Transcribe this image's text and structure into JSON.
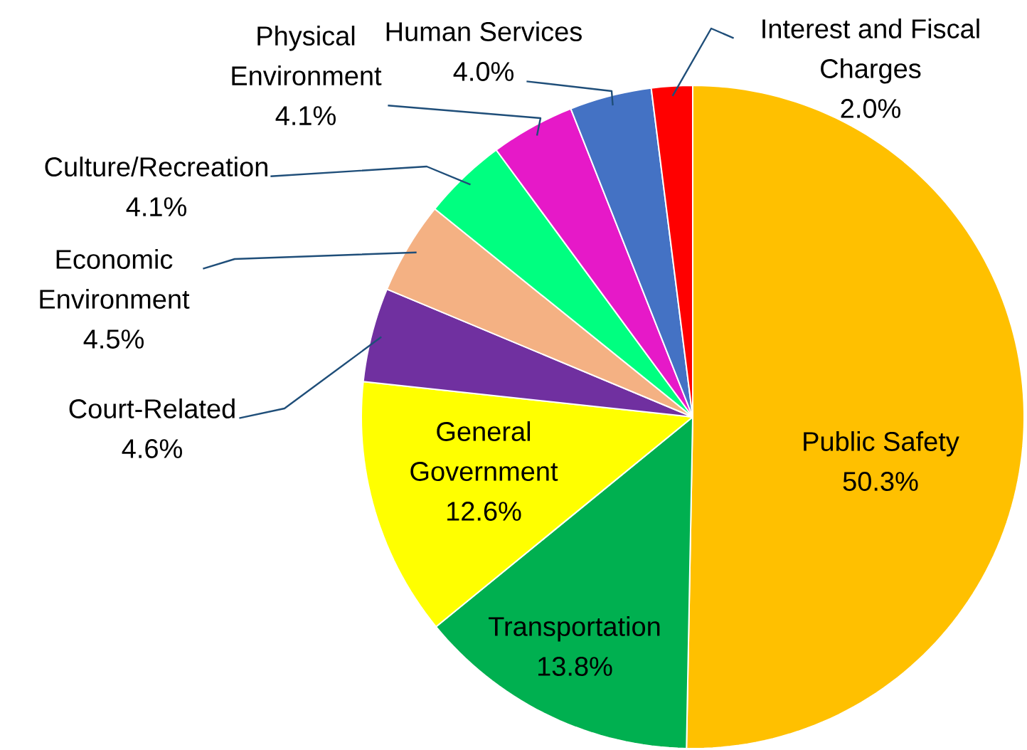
{
  "chart_data": {
    "type": "pie",
    "categories": [
      "Public Safety",
      "Transportation",
      "General Government",
      "Court-Related",
      "Economic Environment",
      "Culture/Recreation",
      "Physical Environment",
      "Human Services",
      "Interest and Fiscal Charges"
    ],
    "values": [
      50.3,
      13.8,
      12.6,
      4.6,
      4.5,
      4.1,
      4.1,
      4.0,
      2.0
    ],
    "colors": [
      "#ffc000",
      "#00b050",
      "#ffff00",
      "#7030a0",
      "#f4b183",
      "#00ff80",
      "#e619c8",
      "#4472c4",
      "#ff0000"
    ],
    "value_labels": [
      "50.3%",
      "13.8%",
      "12.6%",
      "4.6%",
      "4.5%",
      "4.1%",
      "4.1%",
      "4.0%",
      "2.0%"
    ]
  }
}
